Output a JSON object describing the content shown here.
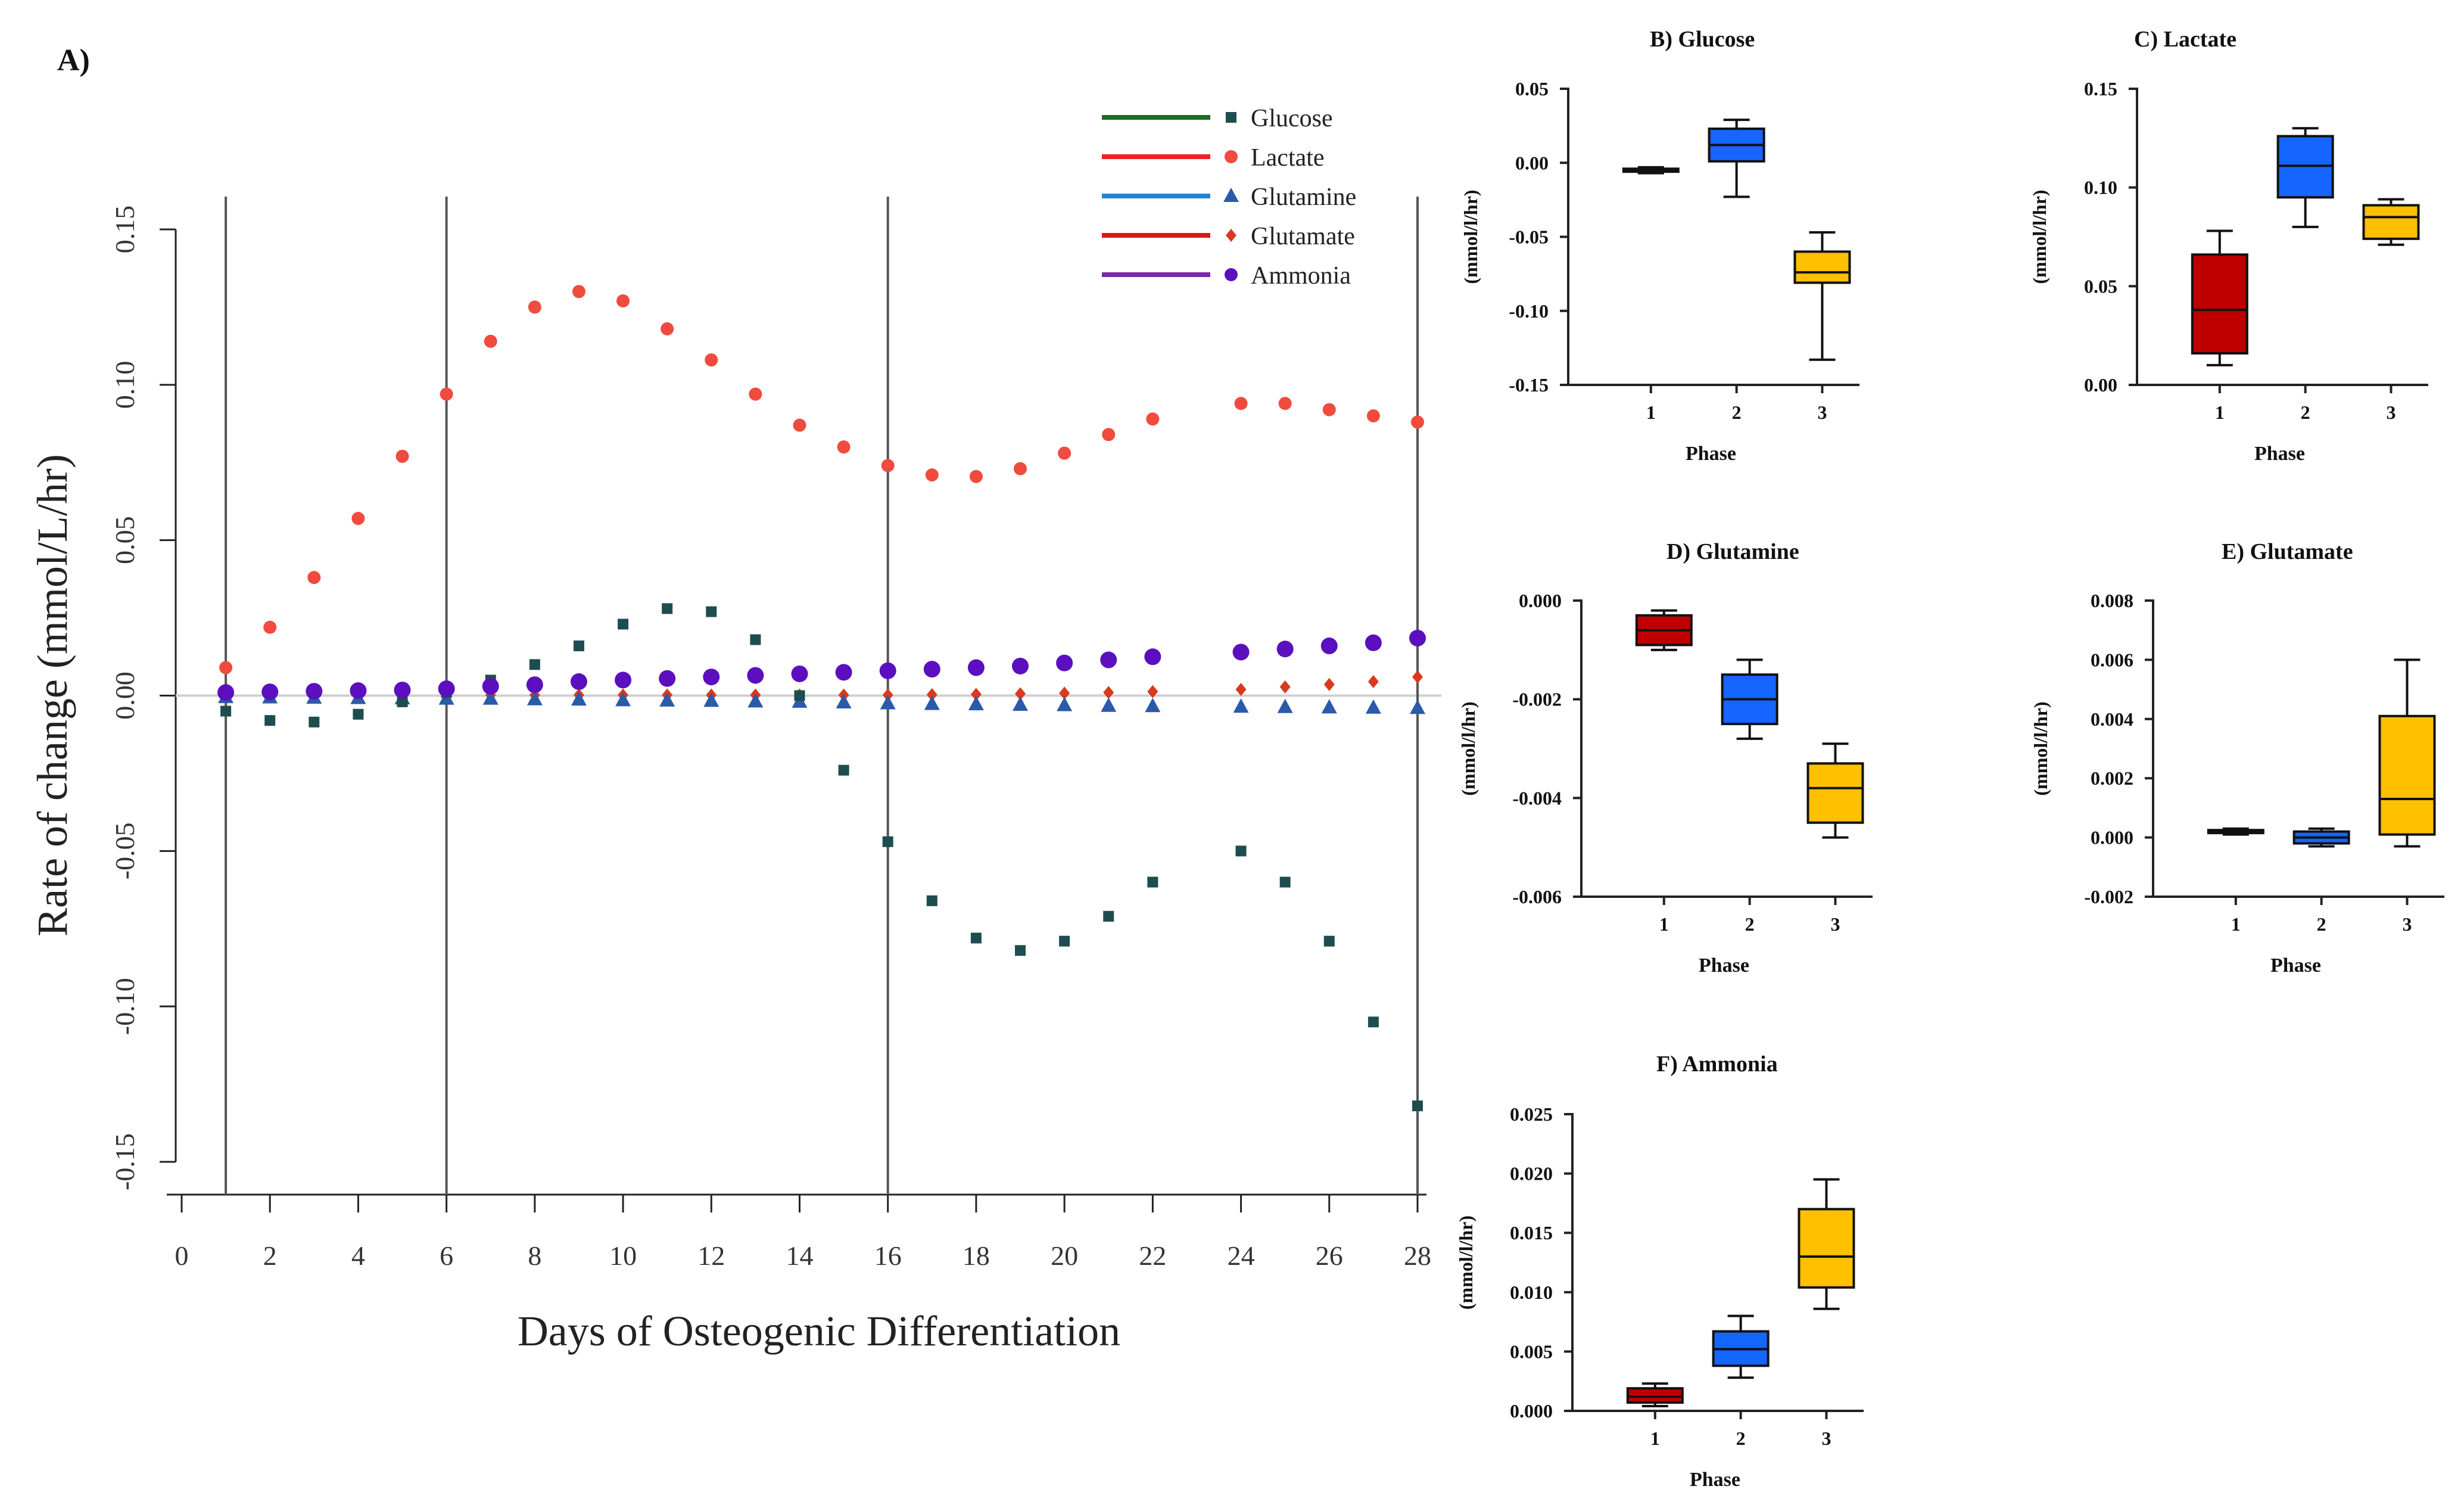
{
  "panel_label": "A)",
  "chart_data": [
    {
      "id": "A",
      "type": "scatter",
      "title": "",
      "xlabel": "Days of Osteogenic Differentiation",
      "ylabel": "Rate of change (mmol/L/hr)",
      "xlim": [
        0,
        28
      ],
      "ylim": [
        -0.15,
        0.15
      ],
      "x_ticks": [
        "0",
        "2",
        "4",
        "6",
        "8",
        "10",
        "12",
        "14",
        "16",
        "18",
        "20",
        "22",
        "24",
        "26",
        "28"
      ],
      "y_ticks": [
        "-0.15",
        "-0.10",
        "-0.05",
        "0.00",
        "0.05",
        "0.10",
        "0.15"
      ],
      "phase_lines": [
        1,
        6,
        16,
        28
      ],
      "legend": {
        "position": "top-right"
      },
      "series": [
        {
          "name": "Glucose",
          "marker": "square",
          "color": "#1e4d4f",
          "line_color": "#1f6b1f",
          "x": [
            1,
            2,
            3,
            4,
            5,
            6,
            7,
            8,
            9,
            10,
            11,
            12,
            13,
            14,
            15,
            16,
            17,
            18,
            19,
            20,
            21,
            22,
            24,
            25,
            26,
            27,
            28
          ],
          "y": [
            -0.005,
            -0.008,
            -0.0085,
            -0.006,
            -0.002,
            0.001,
            0.005,
            0.01,
            0.016,
            0.023,
            0.028,
            0.027,
            0.018,
            0.0,
            -0.024,
            -0.047,
            -0.066,
            -0.078,
            -0.082,
            -0.079,
            -0.071,
            -0.06,
            -0.05,
            -0.06,
            -0.079,
            -0.105,
            -0.132
          ]
        },
        {
          "name": "Lactate",
          "marker": "circle",
          "color": "#f04b3e",
          "line_color": "#f02020",
          "x": [
            1,
            2,
            3,
            4,
            5,
            6,
            7,
            8,
            9,
            10,
            11,
            12,
            13,
            14,
            15,
            16,
            17,
            18,
            19,
            20,
            21,
            22,
            24,
            25,
            26,
            27,
            28
          ],
          "y": [
            0.009,
            0.022,
            0.038,
            0.057,
            0.077,
            0.097,
            0.114,
            0.125,
            0.13,
            0.127,
            0.118,
            0.108,
            0.097,
            0.087,
            0.08,
            0.074,
            0.071,
            0.0705,
            0.073,
            0.078,
            0.084,
            0.089,
            0.094,
            0.094,
            0.092,
            0.09,
            0.088
          ]
        },
        {
          "name": "Glutamine",
          "marker": "triangle",
          "color": "#2a5aa8",
          "line_color": "#1f86d0",
          "x": [
            1,
            2,
            3,
            4,
            5,
            6,
            7,
            8,
            9,
            10,
            11,
            12,
            13,
            14,
            15,
            16,
            17,
            18,
            19,
            20,
            21,
            22,
            24,
            25,
            26,
            27,
            28
          ],
          "y": [
            -0.0005,
            -0.0006,
            -0.0007,
            -0.0008,
            -0.0009,
            -0.001,
            -0.001,
            -0.0012,
            -0.0013,
            -0.0015,
            -0.0016,
            -0.0017,
            -0.0019,
            -0.002,
            -0.0022,
            -0.0025,
            -0.0027,
            -0.0028,
            -0.003,
            -0.0031,
            -0.0033,
            -0.0034,
            -0.0036,
            -0.0037,
            -0.0038,
            -0.0039,
            -0.004
          ]
        },
        {
          "name": "Glutamate",
          "marker": "diamond",
          "color": "#d83a1e",
          "line_color": "#d81818",
          "x": [
            1,
            2,
            3,
            4,
            5,
            6,
            7,
            8,
            9,
            10,
            11,
            12,
            13,
            14,
            15,
            16,
            17,
            18,
            19,
            20,
            21,
            22,
            24,
            25,
            26,
            27,
            28
          ],
          "y": [
            0.0002,
            0.0002,
            0.0002,
            0.0002,
            0.0002,
            0.0002,
            0.0002,
            0.0002,
            0.0002,
            0.0002,
            0.0002,
            0.0002,
            0.0002,
            0.0002,
            0.0002,
            0.0002,
            0.0003,
            0.0004,
            0.0006,
            0.0008,
            0.001,
            0.0013,
            0.002,
            0.0028,
            0.0036,
            0.0045,
            0.006
          ]
        },
        {
          "name": "Ammonia",
          "marker": "circle",
          "color": "#5b0fbf",
          "line_color": "#7a2aa8",
          "x": [
            1,
            2,
            3,
            4,
            5,
            6,
            7,
            8,
            9,
            10,
            11,
            12,
            13,
            14,
            15,
            16,
            17,
            18,
            19,
            20,
            21,
            22,
            24,
            25,
            26,
            27,
            28
          ],
          "y": [
            0.001,
            0.0012,
            0.0014,
            0.0016,
            0.0018,
            0.0022,
            0.003,
            0.0035,
            0.0045,
            0.005,
            0.0055,
            0.006,
            0.0065,
            0.007,
            0.0075,
            0.008,
            0.0085,
            0.009,
            0.0095,
            0.0105,
            0.0115,
            0.0125,
            0.014,
            0.015,
            0.016,
            0.017,
            0.0185
          ]
        }
      ]
    },
    {
      "id": "B",
      "type": "box",
      "title": "B)  Glucose",
      "xlabel": "Phase",
      "ylabel": "(mmol/l/hr)",
      "categories": [
        "1",
        "2",
        "3"
      ],
      "ylim": [
        -0.15,
        0.05
      ],
      "y_ticks": [
        "0.05",
        "0.00",
        "-0.05",
        "-0.10",
        "-0.15"
      ],
      "boxes": [
        {
          "min": -0.007,
          "q1": -0.006,
          "median": -0.0055,
          "q3": -0.004,
          "max": -0.003
        },
        {
          "min": -0.023,
          "q1": 0.001,
          "median": 0.012,
          "q3": 0.023,
          "max": 0.029
        },
        {
          "min": -0.133,
          "q1": -0.081,
          "median": -0.074,
          "q3": -0.06,
          "max": -0.047
        }
      ]
    },
    {
      "id": "C",
      "type": "box",
      "title": "C) Lactate",
      "xlabel": "Phase",
      "ylabel": "(mmol/l/hr)",
      "categories": [
        "1",
        "2",
        "3"
      ],
      "ylim": [
        0,
        0.15
      ],
      "y_ticks": [
        "0.15",
        "0.10",
        "0.05",
        "0.00"
      ],
      "boxes": [
        {
          "min": 0.01,
          "q1": 0.016,
          "median": 0.038,
          "q3": 0.066,
          "max": 0.078
        },
        {
          "min": 0.08,
          "q1": 0.095,
          "median": 0.111,
          "q3": 0.126,
          "max": 0.13
        },
        {
          "min": 0.071,
          "q1": 0.074,
          "median": 0.085,
          "q3": 0.091,
          "max": 0.094
        }
      ]
    },
    {
      "id": "D",
      "type": "box",
      "title": "D) Glutamine",
      "xlabel": "Phase",
      "ylabel": "(mmol/l/hr)",
      "categories": [
        "1",
        "2",
        "3"
      ],
      "ylim": [
        -0.006,
        0.0
      ],
      "y_ticks": [
        "0.000",
        "-0.002",
        "-0.004",
        "-0.006"
      ],
      "boxes": [
        {
          "min": -0.001,
          "q1": -0.0009,
          "median": -0.0006,
          "q3": -0.0003,
          "max": -0.0002
        },
        {
          "min": -0.0028,
          "q1": -0.0025,
          "median": -0.002,
          "q3": -0.0015,
          "max": -0.0012
        },
        {
          "min": -0.0048,
          "q1": -0.0045,
          "median": -0.0038,
          "q3": -0.0033,
          "max": -0.0029
        }
      ]
    },
    {
      "id": "E",
      "type": "box",
      "title": "E) Glutamate",
      "xlabel": "Phase",
      "ylabel": "(mmol/l/hr)",
      "categories": [
        "1",
        "2",
        "3"
      ],
      "ylim": [
        -0.002,
        0.008
      ],
      "y_ticks": [
        "0.008",
        "0.006",
        "0.004",
        "0.002",
        "0.000",
        "-0.002"
      ],
      "boxes": [
        {
          "min": 0.0001,
          "q1": 0.00015,
          "median": 0.0002,
          "q3": 0.00025,
          "max": 0.0003
        },
        {
          "min": -0.0003,
          "q1": -0.0002,
          "median": 0.0,
          "q3": 0.0002,
          "max": 0.0003
        },
        {
          "min": -0.0003,
          "q1": 0.0001,
          "median": 0.0013,
          "q3": 0.0041,
          "max": 0.006
        }
      ]
    },
    {
      "id": "F",
      "type": "box",
      "title": "F) Ammonia",
      "xlabel": "Phase",
      "ylabel": "(mmol/l/hr)",
      "categories": [
        "1",
        "2",
        "3"
      ],
      "ylim": [
        0,
        0.025
      ],
      "y_ticks": [
        "0.025",
        "0.020",
        "0.015",
        "0.010",
        "0.005",
        "0.000"
      ],
      "boxes": [
        {
          "min": 0.0004,
          "q1": 0.0007,
          "median": 0.0012,
          "q3": 0.0019,
          "max": 0.0023
        },
        {
          "min": 0.0028,
          "q1": 0.0038,
          "median": 0.0052,
          "q3": 0.0067,
          "max": 0.008
        },
        {
          "min": 0.0086,
          "q1": 0.0104,
          "median": 0.013,
          "q3": 0.017,
          "max": 0.0195
        }
      ]
    }
  ],
  "colors": {
    "phase1": "#c00000",
    "phase2": "#1565ff",
    "phase3": "#ffc000",
    "zero_line": "#cfcfcf",
    "axis": "#222222"
  }
}
